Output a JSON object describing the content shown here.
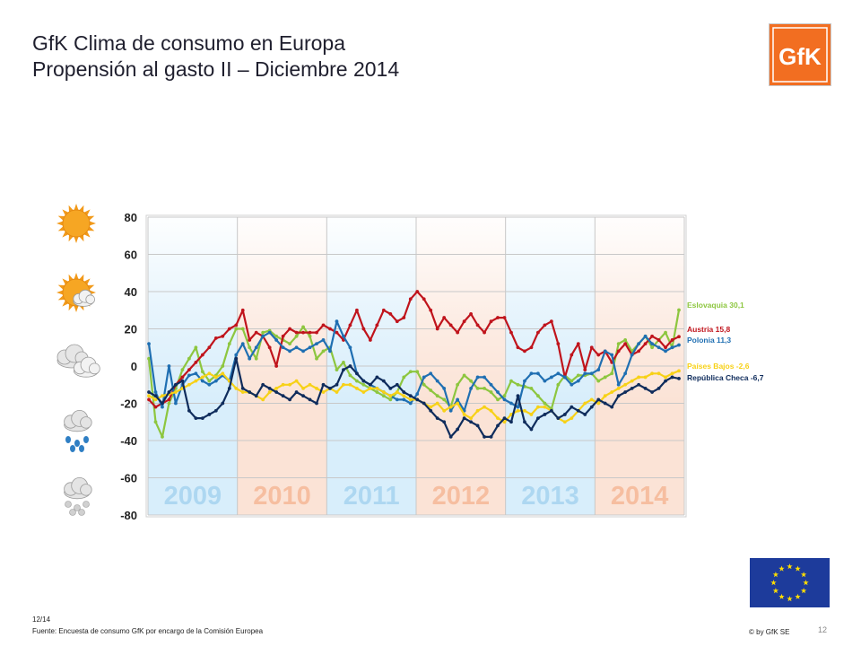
{
  "header": {
    "title_line1": "GfK Clima de consumo en Europa",
    "title_line2": "Propensión al gasto II – Diciembre 2014"
  },
  "logo": {
    "text": "GfK",
    "color": "#f26e21"
  },
  "footer": {
    "date": "12/14",
    "source": "Fuente: Encuesta de consumo GfK por encargo de la Comisión Europea",
    "page": "12",
    "copyright": "© by GfK SE"
  },
  "weather_icons": [
    "sun-icon",
    "sun-cloud-icon",
    "cloud-icon",
    "rain-cloud-icon",
    "snow-cloud-icon"
  ],
  "chart_data": {
    "type": "line",
    "ylim": [
      -80,
      80
    ],
    "yticks": [
      80,
      60,
      40,
      20,
      0,
      -20,
      -40,
      -60,
      -80
    ],
    "grid": true,
    "legend": "right",
    "years": [
      {
        "label": "2009",
        "bg": "#d8eefb"
      },
      {
        "label": "2010",
        "bg": "#fbe3d6"
      },
      {
        "label": "2011",
        "bg": "#d8eefb"
      },
      {
        "label": "2012",
        "bg": "#fbe3d6"
      },
      {
        "label": "2013",
        "bg": "#d8eefb"
      },
      {
        "label": "2014",
        "bg": "#fbe3d6"
      }
    ],
    "series": [
      {
        "name": "Eslovaquia",
        "value_label": "30,1",
        "color": "#8dc63f",
        "values": [
          4,
          -30,
          -38,
          -20,
          -12,
          -2,
          4,
          10,
          -3,
          -8,
          -5,
          0,
          12,
          20,
          20,
          10,
          4,
          18,
          19,
          16,
          14,
          12,
          16,
          21,
          16,
          4,
          8,
          10,
          -2,
          2,
          -5,
          -8,
          -10,
          -12,
          -14,
          -16,
          -18,
          -14,
          -6,
          -3,
          -3,
          -10,
          -13,
          -16,
          -18,
          -22,
          -10,
          -5,
          -8,
          -12,
          -12,
          -14,
          -18,
          -16,
          -8,
          -10,
          -11,
          -12,
          -16,
          -20,
          -23,
          -10,
          -5,
          -8,
          -5,
          -5,
          -4,
          -8,
          -6,
          -4,
          12,
          14,
          8,
          12,
          16,
          10,
          14,
          18,
          10,
          30.1
        ]
      },
      {
        "name": "Austria",
        "value_label": "15,8",
        "color": "#c0141c",
        "values": [
          -18,
          -22,
          -20,
          -18,
          -10,
          -6,
          -2,
          2,
          6,
          10,
          15,
          16,
          20,
          22,
          30,
          14,
          18,
          16,
          10,
          0,
          16,
          20,
          18,
          18,
          18,
          18,
          22,
          20,
          18,
          14,
          22,
          30,
          20,
          14,
          22,
          30,
          28,
          24,
          26,
          36,
          40,
          36,
          30,
          20,
          26,
          22,
          18,
          24,
          28,
          22,
          18,
          24,
          26,
          26,
          18,
          10,
          8,
          10,
          18,
          22,
          24,
          12,
          -6,
          6,
          12,
          -2,
          10,
          6,
          8,
          2,
          8,
          12,
          6,
          8,
          12,
          16,
          14,
          10,
          14,
          15.8
        ]
      },
      {
        "name": "Polonia",
        "value_label": "11,3",
        "color": "#1f6fb2",
        "values": [
          12,
          -14,
          -22,
          0,
          -20,
          -10,
          -5,
          -4,
          -8,
          -10,
          -8,
          -5,
          -8,
          6,
          12,
          4,
          10,
          16,
          18,
          14,
          10,
          8,
          10,
          8,
          10,
          12,
          14,
          8,
          24,
          16,
          10,
          -4,
          -8,
          -10,
          -12,
          -14,
          -16,
          -18,
          -18,
          -20,
          -15,
          -6,
          -4,
          -8,
          -12,
          -24,
          -18,
          -24,
          -12,
          -6,
          -6,
          -10,
          -14,
          -18,
          -20,
          -22,
          -8,
          -4,
          -4,
          -8,
          -6,
          -4,
          -6,
          -10,
          -8,
          -4,
          -4,
          -2,
          8,
          6,
          -10,
          -4,
          6,
          12,
          16,
          12,
          10,
          8,
          10,
          11.3
        ]
      },
      {
        "name": "Países Bajos",
        "value_label": "-2,6",
        "color": "#f7d117",
        "values": [
          -16,
          -18,
          -16,
          -15,
          -14,
          -12,
          -10,
          -8,
          -6,
          -4,
          -6,
          -4,
          -8,
          -12,
          -14,
          -14,
          -16,
          -18,
          -14,
          -12,
          -10,
          -10,
          -8,
          -12,
          -10,
          -12,
          -14,
          -12,
          -14,
          -10,
          -10,
          -12,
          -14,
          -12,
          -12,
          -14,
          -16,
          -14,
          -16,
          -18,
          -18,
          -20,
          -22,
          -20,
          -24,
          -22,
          -20,
          -26,
          -28,
          -24,
          -22,
          -24,
          -28,
          -30,
          -26,
          -24,
          -24,
          -26,
          -22,
          -22,
          -24,
          -28,
          -30,
          -28,
          -24,
          -20,
          -18,
          -20,
          -16,
          -14,
          -12,
          -10,
          -8,
          -6,
          -6,
          -4,
          -4,
          -6,
          -4,
          -2.6
        ]
      },
      {
        "name": "República Checa",
        "value_label": "-6,7",
        "color": "#0f2c5c",
        "values": [
          -14,
          -16,
          -20,
          -14,
          -10,
          -8,
          -24,
          -28,
          -28,
          -26,
          -24,
          -20,
          -12,
          4,
          -12,
          -14,
          -16,
          -10,
          -12,
          -14,
          -16,
          -18,
          -14,
          -16,
          -18,
          -20,
          -10,
          -12,
          -10,
          -2,
          0,
          -4,
          -8,
          -10,
          -6,
          -8,
          -12,
          -10,
          -14,
          -16,
          -18,
          -20,
          -24,
          -28,
          -30,
          -38,
          -34,
          -28,
          -30,
          -32,
          -38,
          -38,
          -32,
          -28,
          -30,
          -16,
          -30,
          -34,
          -28,
          -26,
          -24,
          -28,
          -26,
          -22,
          -24,
          -26,
          -22,
          -18,
          -20,
          -22,
          -16,
          -14,
          -12,
          -10,
          -12,
          -14,
          -12,
          -8,
          -6,
          -6.7
        ]
      }
    ]
  }
}
